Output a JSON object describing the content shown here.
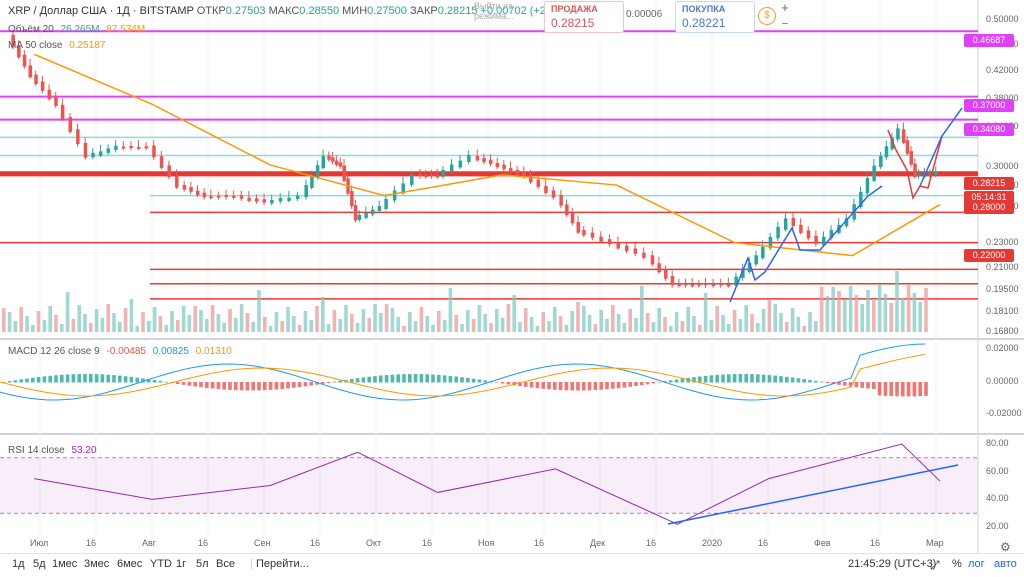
{
  "header": {
    "symbol": "XRP / Доллар США · 1Д · BITSTAMP",
    "open_label": "ОТКР",
    "open": "0.27503",
    "high_label": "МАКС",
    "high": "0.28550",
    "low_label": "МИН",
    "low": "0.27500",
    "close_label": "ЗАКР",
    "close": "0.28215",
    "change": "+0.00702 (+2.55%)"
  },
  "trade": {
    "login": "Выйти из режима...",
    "sell_label": "ПРОДАЖА",
    "sell": "0.28215",
    "spread": "0.00006",
    "buy_label": "ПОКУПКА",
    "buy": "0.28221"
  },
  "indicators": {
    "volume": {
      "label": "Объём 20",
      "v1": "26.265M",
      "v2": "87.534M"
    },
    "ma": {
      "label": "MA 50 close",
      "value": "0.25187"
    },
    "macd": {
      "label": "MACD 12 26 close 9",
      "hist": "-0.00485",
      "macd": "0.00825",
      "signal": "0.01310"
    },
    "rsi": {
      "label": "RSI 14 close",
      "value": "53.20"
    }
  },
  "price_axis": [
    "0.50000",
    "0.46000",
    "0.42000",
    "0.38000",
    "0.34000",
    "0.30000",
    "0.27000",
    "0.25000",
    "0.23000",
    "0.21000",
    "0.19500",
    "0.18100",
    "0.16800"
  ],
  "price_tags": [
    {
      "value": "0.46687",
      "color": "#e040fb"
    },
    {
      "value": "0.37000",
      "color": "#e040fb"
    },
    {
      "value": "0.34080",
      "color": "#e040fb"
    },
    {
      "value": "0.28215",
      "color": "#e53935"
    },
    {
      "value": "05:14:31",
      "color": "#e53935"
    },
    {
      "value": "0.28000",
      "color": "#e53935"
    },
    {
      "value": "0.22000",
      "color": "#e53935"
    }
  ],
  "macd_axis": [
    "0.02000",
    "0.00000",
    "-0.02000"
  ],
  "rsi_axis": [
    "80.00",
    "60.00",
    "40.00",
    "20.00"
  ],
  "date_labels": [
    "Июл",
    "16",
    "Авг",
    "16",
    "Сен",
    "16",
    "Окт",
    "16",
    "Ноя",
    "16",
    "Дек",
    "16",
    "2020",
    "16",
    "Фев",
    "16",
    "Мар"
  ],
  "bottom": {
    "ranges": [
      "1д",
      "5д",
      "1мес",
      "3мес",
      "6мес",
      "YTD",
      "1г",
      "5л",
      "Все"
    ],
    "goto": "Перейти...",
    "time": "21:45:29 (UTC+3)",
    "pct": "%",
    "log": "лог",
    "auto": "авто"
  },
  "chart_data": {
    "type": "candlestick",
    "symbol": "XRP/USD",
    "timeframe": "1D",
    "ylim": [
      0.16,
      0.5
    ],
    "log_scale": true,
    "series": [
      {
        "name": "close",
        "x": [
          "2019-06-25",
          "2019-07-01",
          "2019-07-08",
          "2019-07-16",
          "2019-07-24",
          "2019-08-01",
          "2019-08-09",
          "2019-08-16",
          "2019-08-24",
          "2019-09-01",
          "2019-09-10",
          "2019-09-16",
          "2019-09-20",
          "2019-09-24",
          "2019-10-01",
          "2019-10-10",
          "2019-10-16",
          "2019-10-25",
          "2019-11-01",
          "2019-11-08",
          "2019-11-16",
          "2019-11-22",
          "2019-12-01",
          "2019-12-10",
          "2019-12-17",
          "2019-12-24",
          "2020-01-01",
          "2020-01-08",
          "2020-01-16",
          "2020-01-24",
          "2020-02-01",
          "2020-02-08",
          "2020-02-14",
          "2020-02-18",
          "2020-02-24"
        ],
        "values": [
          0.46,
          0.4,
          0.36,
          0.3,
          0.31,
          0.31,
          0.27,
          0.26,
          0.26,
          0.255,
          0.26,
          0.3,
          0.29,
          0.24,
          0.25,
          0.28,
          0.28,
          0.3,
          0.29,
          0.28,
          0.26,
          0.23,
          0.22,
          0.21,
          0.19,
          0.19,
          0.19,
          0.21,
          0.24,
          0.22,
          0.24,
          0.29,
          0.33,
          0.28,
          0.28215
        ]
      },
      {
        "name": "MA 50 close",
        "x": [
          "2019-07-01",
          "2019-08-01",
          "2019-09-01",
          "2019-10-01",
          "2019-11-01",
          "2019-12-01",
          "2020-01-01",
          "2020-02-01",
          "2020-02-24"
        ],
        "values": [
          0.43,
          0.36,
          0.29,
          0.26,
          0.28,
          0.27,
          0.22,
          0.21,
          0.25187
        ]
      }
    ],
    "horizontal_levels": [
      0.46687,
      0.37,
      0.3408,
      0.32,
      0.3,
      0.28215,
      0.28,
      0.26,
      0.245,
      0.22,
      0.2,
      0.19,
      0.18
    ],
    "rsi": {
      "x": [
        "2019-07-01",
        "2019-08-01",
        "2019-09-01",
        "2019-09-24",
        "2019-10-15",
        "2019-11-15",
        "2019-12-17",
        "2020-01-10",
        "2020-02-14",
        "2020-02-24"
      ],
      "values": [
        55,
        40,
        50,
        74,
        45,
        62,
        22,
        55,
        80,
        53.2
      ]
    },
    "macd": {
      "macd": 0.00825,
      "signal": 0.0131,
      "hist": -0.00485
    }
  }
}
